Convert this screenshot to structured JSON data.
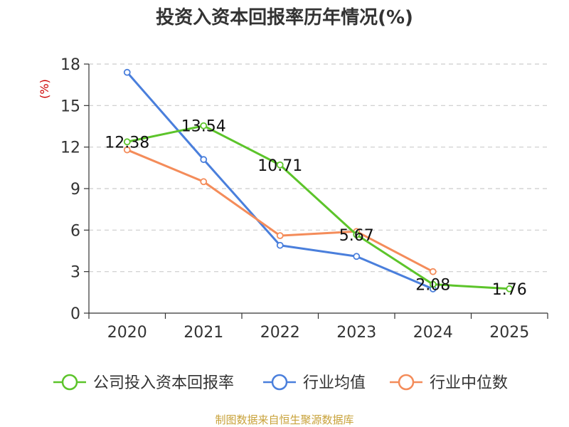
{
  "chart_data": {
    "type": "line",
    "title": "投资入资本回报率历年情况(%)",
    "ylabel_unit": "(%)",
    "categories": [
      "2020",
      "2021",
      "2022",
      "2023",
      "2024",
      "2025"
    ],
    "ylim": [
      0,
      18
    ],
    "yticks": [
      0,
      3,
      6,
      9,
      12,
      15,
      18
    ],
    "grid": true,
    "legend_position": "bottom",
    "series": [
      {
        "name": "公司投入资本回报率",
        "color": "#5cc42a",
        "values": [
          12.38,
          13.54,
          10.71,
          5.67,
          2.08,
          1.76
        ],
        "labels": [
          "12.38",
          "13.54",
          "10.71",
          "5.67",
          "2.08",
          "1.76"
        ]
      },
      {
        "name": "行业均值",
        "color": "#4a7fdc",
        "values": [
          17.4,
          11.1,
          4.9,
          4.1,
          1.75,
          null
        ]
      },
      {
        "name": "行业中位数",
        "color": "#f48c5a",
        "values": [
          11.8,
          9.5,
          5.6,
          5.9,
          3.0,
          null
        ]
      }
    ],
    "source": "制图数据来自恒生聚源数据库"
  }
}
